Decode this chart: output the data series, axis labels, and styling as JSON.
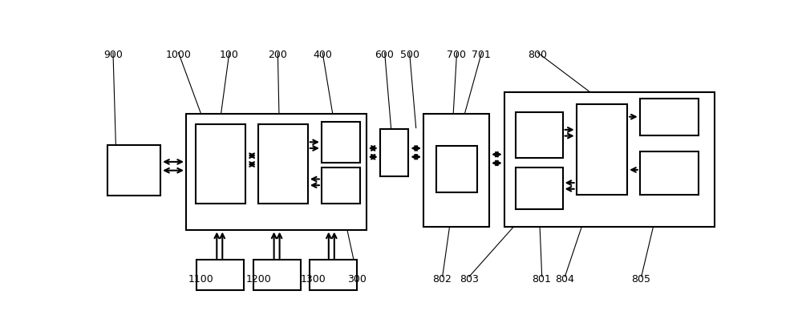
{
  "bg_color": "#ffffff",
  "lc": "#000000",
  "lw": 1.5,
  "fs": 9
}
